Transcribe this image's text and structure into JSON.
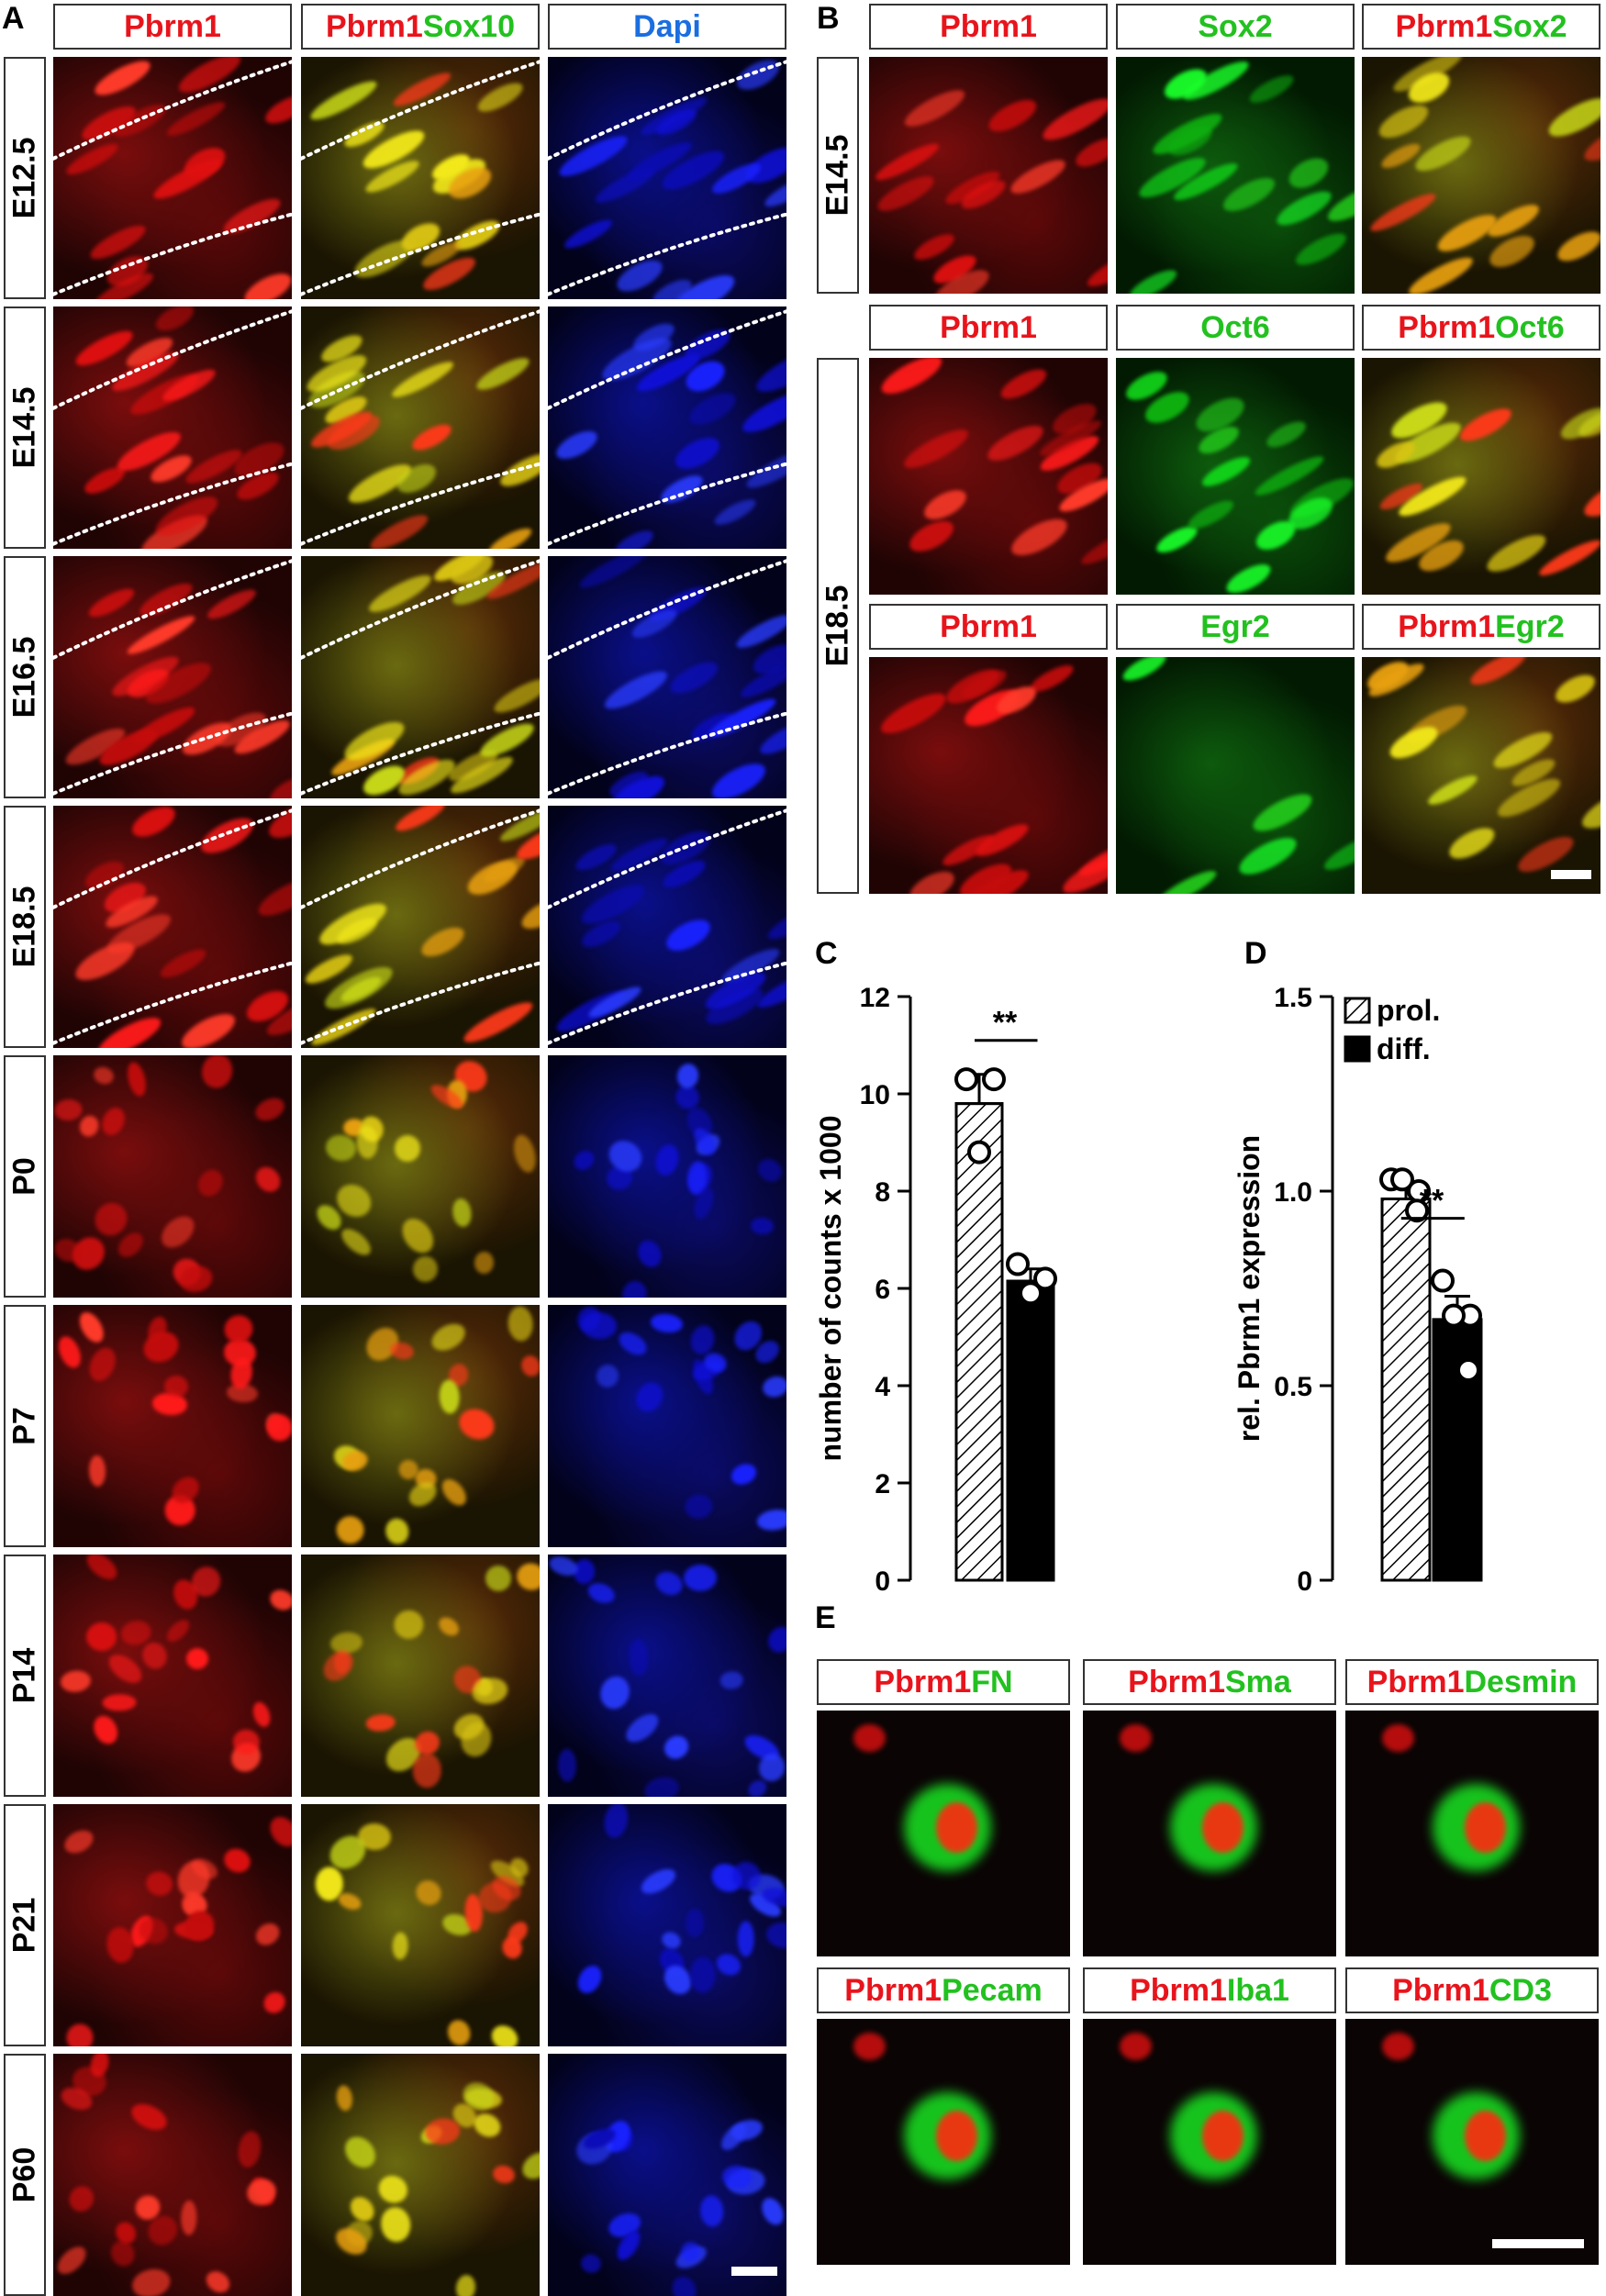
{
  "panel_a": {
    "label": "A",
    "headers": [
      {
        "parts": [
          {
            "text": "Pbrm1",
            "color": "red"
          }
        ]
      },
      {
        "parts": [
          {
            "text": "Pbrm1",
            "color": "red"
          },
          {
            "text": "Sox10",
            "color": "green"
          }
        ]
      },
      {
        "parts": [
          {
            "text": "Dapi",
            "color": "blue"
          }
        ]
      }
    ],
    "rows": [
      "E12.5",
      "E14.5",
      "E16.5",
      "E18.5",
      "P0",
      "P7",
      "P14",
      "P21",
      "P60"
    ]
  },
  "panel_b": {
    "label": "B",
    "groups": [
      {
        "row_label": "E14.5",
        "headers": [
          {
            "parts": [
              {
                "text": "Pbrm1",
                "color": "red"
              }
            ]
          },
          {
            "parts": [
              {
                "text": "Sox2",
                "color": "green"
              }
            ]
          },
          {
            "parts": [
              {
                "text": "Pbrm1",
                "color": "red"
              },
              {
                "text": "Sox2",
                "color": "green"
              }
            ]
          }
        ]
      },
      {
        "row_label": "E18.5",
        "headers": [
          {
            "parts": [
              {
                "text": "Pbrm1",
                "color": "red"
              }
            ]
          },
          {
            "parts": [
              {
                "text": "Oct6",
                "color": "green"
              }
            ]
          },
          {
            "parts": [
              {
                "text": "Pbrm1",
                "color": "red"
              },
              {
                "text": "Oct6",
                "color": "green"
              }
            ]
          }
        ]
      },
      {
        "row_label": "",
        "headers": [
          {
            "parts": [
              {
                "text": "Pbrm1",
                "color": "red"
              }
            ]
          },
          {
            "parts": [
              {
                "text": "Egr2",
                "color": "green"
              }
            ]
          },
          {
            "parts": [
              {
                "text": "Pbrm1",
                "color": "red"
              },
              {
                "text": "Egr2",
                "color": "green"
              }
            ]
          }
        ]
      }
    ]
  },
  "panel_c": {
    "label": "C",
    "significance": "**"
  },
  "panel_d": {
    "label": "D",
    "significance": "**"
  },
  "panel_e": {
    "label": "E",
    "headers": [
      {
        "parts": [
          {
            "text": "Pbrm1",
            "color": "red"
          },
          {
            "text": "FN",
            "color": "green"
          }
        ]
      },
      {
        "parts": [
          {
            "text": "Pbrm1",
            "color": "red"
          },
          {
            "text": "Sma",
            "color": "green"
          }
        ]
      },
      {
        "parts": [
          {
            "text": "Pbrm1",
            "color": "red"
          },
          {
            "text": "Desmin",
            "color": "green"
          }
        ]
      },
      {
        "parts": [
          {
            "text": "Pbrm1",
            "color": "red"
          },
          {
            "text": "Pecam",
            "color": "green"
          }
        ]
      },
      {
        "parts": [
          {
            "text": "Pbrm1",
            "color": "red"
          },
          {
            "text": "Iba1",
            "color": "green"
          }
        ]
      },
      {
        "parts": [
          {
            "text": "Pbrm1",
            "color": "red"
          },
          {
            "text": "CD3",
            "color": "green"
          }
        ]
      }
    ]
  },
  "chart_data": [
    {
      "type": "bar",
      "panel": "C",
      "categories": [
        "prol.",
        "diff."
      ],
      "values": [
        9.8,
        6.15
      ],
      "errors": [
        0.6,
        0.25
      ],
      "points": [
        [
          10.3,
          10.3,
          8.8
        ],
        [
          6.5,
          6.2,
          5.9
        ]
      ],
      "ylabel": "number of counts x 1000",
      "ylim": [
        0,
        12
      ],
      "yticks": [
        "0",
        "2",
        "4",
        "6",
        "8",
        "10",
        "12"
      ]
    },
    {
      "type": "bar",
      "panel": "D",
      "categories": [
        "prol.",
        "diff."
      ],
      "values": [
        0.98,
        0.67
      ],
      "errors": [
        0.03,
        0.06
      ],
      "points": [
        [
          1.03,
          1.0,
          1.03,
          0.95
        ],
        [
          0.77,
          0.68,
          0.68,
          0.54
        ]
      ],
      "ylabel": "rel. Pbrm1 expression",
      "ylim": [
        0,
        1.5
      ],
      "yticks": [
        "0",
        "0.5",
        "1.0",
        "1.5"
      ],
      "legend": [
        "prol.",
        "diff."
      ],
      "legend_position": "top-left"
    }
  ]
}
